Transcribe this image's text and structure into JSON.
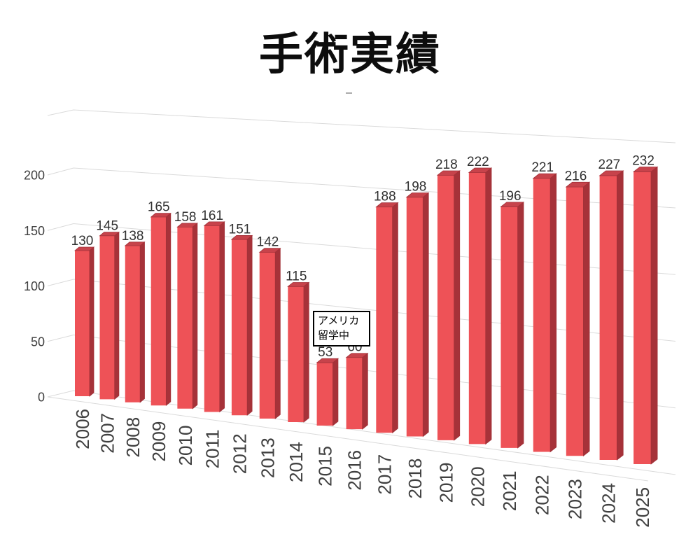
{
  "chart_data": {
    "type": "bar",
    "style": "3d-clustered-column",
    "title": "手術実績",
    "categories": [
      "2006",
      "2007",
      "2008",
      "2009",
      "2010",
      "2011",
      "2012",
      "2013",
      "2014",
      "2015",
      "2016",
      "2017",
      "2018",
      "2019",
      "2020",
      "2021",
      "2022",
      "2023",
      "2024",
      "2025"
    ],
    "values": [
      130,
      145,
      138,
      165,
      158,
      161,
      151,
      142,
      115,
      53,
      60,
      188,
      198,
      218,
      222,
      196,
      221,
      216,
      227,
      232
    ],
    "xlabel": "",
    "ylabel": "",
    "ylim": [
      0,
      200
    ],
    "yticks": [
      0,
      50,
      100,
      150,
      200
    ],
    "grid": true,
    "legend": "none",
    "data_labels": true,
    "annotation": [
      "アメリカ",
      "留学中"
    ],
    "colors": {
      "bar_front": "#EE5257",
      "bar_side": "#A63239",
      "bar_top": "#C7434B",
      "bar_edge": "#A23138",
      "gridline": "#DADADA",
      "value_label": "#303030",
      "axis_label": "#404040",
      "title": "#0d0d0d",
      "background": "#ffffff"
    }
  }
}
